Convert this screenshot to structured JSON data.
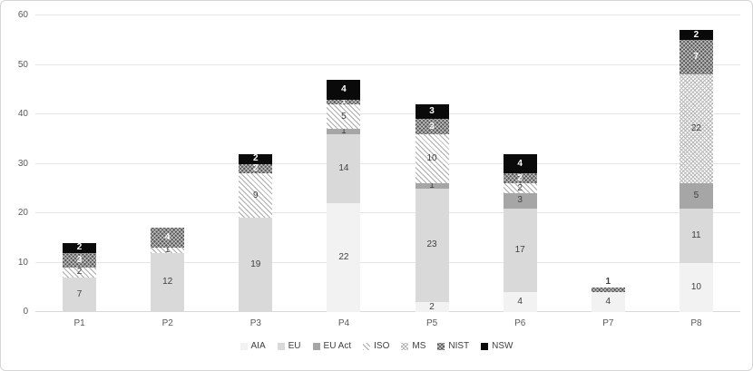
{
  "chart_data": {
    "type": "bar",
    "subtype": "stacked",
    "title": "",
    "xlabel": "",
    "ylabel": "",
    "categories": [
      "P1",
      "P2",
      "P3",
      "P4",
      "P5",
      "P6",
      "P7",
      "P8"
    ],
    "series": [
      {
        "name": "AIA",
        "values": [
          0,
          0,
          0,
          22,
          2,
          4,
          4,
          10
        ]
      },
      {
        "name": "EU",
        "values": [
          7,
          12,
          19,
          14,
          23,
          17,
          0,
          11
        ]
      },
      {
        "name": "EU Act",
        "values": [
          0,
          0,
          0,
          1,
          1,
          3,
          0,
          5
        ]
      },
      {
        "name": "ISO",
        "values": [
          2,
          1,
          9,
          5,
          10,
          2,
          0,
          0
        ]
      },
      {
        "name": "MS",
        "values": [
          0,
          0,
          0,
          0,
          0,
          0,
          0,
          22
        ]
      },
      {
        "name": "NIST",
        "values": [
          3,
          4,
          2,
          1,
          3,
          2,
          1,
          7
        ]
      },
      {
        "name": "NSW",
        "values": [
          2,
          0,
          2,
          4,
          3,
          4,
          0,
          2
        ]
      }
    ],
    "totals": [
      14,
      17,
      32,
      47,
      42,
      32,
      5,
      57
    ],
    "ylim": [
      0,
      60
    ],
    "yticks": [
      0,
      10,
      20,
      30,
      40,
      50,
      60
    ],
    "grid": true,
    "legend_position": "bottom",
    "legend_labels": [
      "AIA",
      "EU",
      "EU Act",
      "ISO",
      "MS",
      "NIST",
      "NSW"
    ]
  },
  "colors": {
    "aia": "#f2f2f2",
    "eu": "#d9d9d9",
    "eu_act": "#a6a6a6",
    "iso_hatch": "#ababab",
    "ms_hatch": "#b8b8b8",
    "nist_bg": "#565656",
    "nsw": "#0a0a0a",
    "gridline": "#e6e6e6",
    "axis_text": "#595959",
    "label_dark": "#3f3f3f",
    "label_light": "#ffffff"
  }
}
